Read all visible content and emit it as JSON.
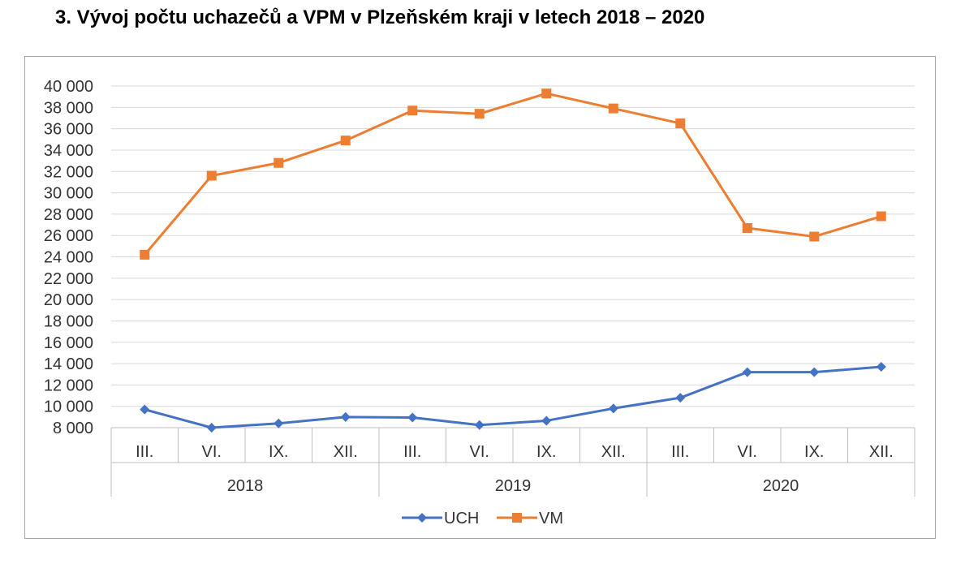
{
  "page": {
    "title": "3. Vývoj počtu uchazečů a VPM v Plzeňském kraji v letech 2018 – 2020"
  },
  "chart_data": {
    "type": "line",
    "title": "",
    "xlabel": "",
    "ylabel": "",
    "ylim": [
      8000,
      40000
    ],
    "y_ticks": [
      "8 000",
      "10 000",
      "12 000",
      "14 000",
      "16 000",
      "18 000",
      "20 000",
      "22 000",
      "24 000",
      "26 000",
      "28 000",
      "30 000",
      "32 000",
      "34 000",
      "36 000",
      "38 000",
      "40 000"
    ],
    "categories": [
      "III.",
      "VI.",
      "IX.",
      "XII.",
      "III.",
      "VI.",
      "IX.",
      "XII.",
      "III.",
      "VI.",
      "IX.",
      "XII."
    ],
    "groups": [
      {
        "label": "2018",
        "span": 4
      },
      {
        "label": "2019",
        "span": 4
      },
      {
        "label": "2020",
        "span": 4
      }
    ],
    "grid": true,
    "legend_position": "bottom",
    "series": [
      {
        "name": "UCH",
        "color": "#4472c4",
        "marker": "diamond",
        "values": [
          9700,
          8000,
          8400,
          9000,
          8950,
          8250,
          8650,
          9800,
          10800,
          13200,
          13200,
          13700
        ]
      },
      {
        "name": "VM",
        "color": "#ed7d31",
        "marker": "square",
        "values": [
          24200,
          31600,
          32800,
          34900,
          37700,
          37400,
          39300,
          37900,
          36500,
          26700,
          25900,
          27800
        ]
      }
    ]
  }
}
